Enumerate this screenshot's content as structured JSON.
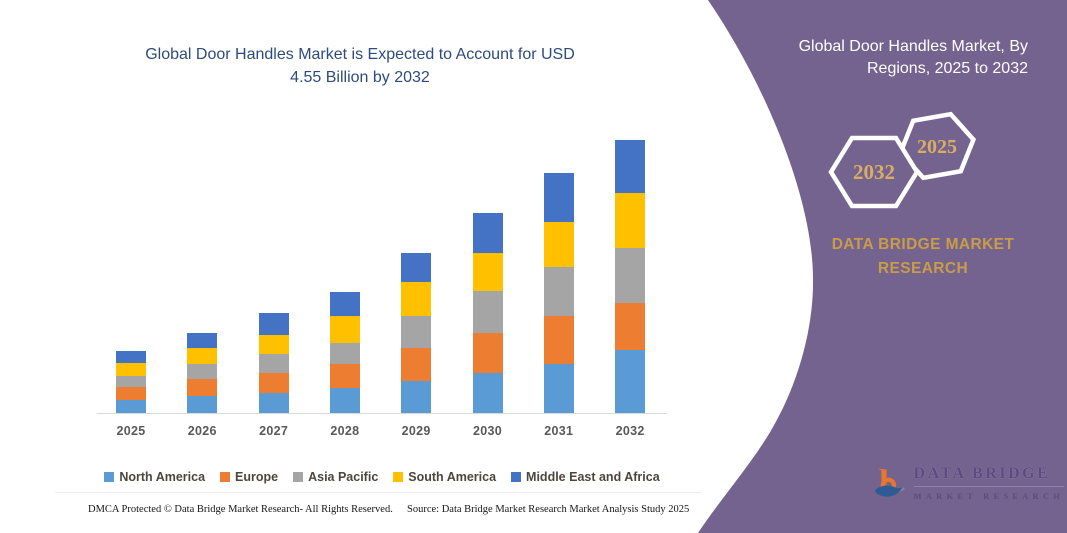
{
  "page": {
    "background": "#ffffff",
    "accent_purple": "#75638F",
    "gold": "#C89C49",
    "hex_year_gold": "#D9AE63",
    "title_navy": "#2E4B7E"
  },
  "chart": {
    "title_line1": "Global Door Handles Market is Expected to Account for USD",
    "title_line2": "4.55 Billion by 2032"
  },
  "chart_data": {
    "type": "bar",
    "stacked": true,
    "title": "Global Door Handles Market is Expected to Account for USD 4.55 Billion by 2032",
    "unit": "USD billion",
    "categories": [
      "2025",
      "2026",
      "2027",
      "2028",
      "2029",
      "2030",
      "2031",
      "2032"
    ],
    "series": [
      {
        "name": "North America",
        "color": "#5B9BD5",
        "values": [
          0.22,
          0.28,
          0.33,
          0.42,
          0.53,
          0.67,
          0.81,
          1.05
        ]
      },
      {
        "name": "Europe",
        "color": "#ED7D31",
        "values": [
          0.22,
          0.28,
          0.33,
          0.39,
          0.56,
          0.67,
          0.81,
          0.78
        ]
      },
      {
        "name": "Asia Pacific",
        "color": "#A5A5A5",
        "values": [
          0.17,
          0.25,
          0.33,
          0.36,
          0.53,
          0.69,
          0.81,
          0.92
        ]
      },
      {
        "name": "South America",
        "color": "#FFC000",
        "values": [
          0.22,
          0.28,
          0.31,
          0.44,
          0.56,
          0.64,
          0.76,
          0.92
        ]
      },
      {
        "name": "Middle East and Africa",
        "color": "#4472C4",
        "values": [
          0.2,
          0.25,
          0.37,
          0.41,
          0.49,
          0.66,
          0.81,
          0.88
        ]
      }
    ],
    "totals": [
      1.03,
      1.34,
      1.67,
      2.02,
      2.67,
      3.33,
      4.0,
      4.55
    ],
    "ylim": [
      0,
      4.9
    ],
    "y_axis_visible": false,
    "gridlines": false,
    "legend_position": "bottom"
  },
  "footer": {
    "left": "DMCA Protected © Data Bridge Market Research-  All Rights Reserved.",
    "right": "Source: Data Bridge Market Research  Market Analysis Study 2025"
  },
  "right_panel": {
    "title_line1": "Global Door Handles Market, By",
    "title_line2": "Regions, 2025 to 2032",
    "hexagon_back_year": "2025",
    "hexagon_front_year": "2032",
    "heading_line1": "DATA BRIDGE MARKET",
    "heading_line2": "RESEARCH",
    "logo_name": "DATA BRIDGE",
    "logo_sub": "MARKET RESEARCH"
  }
}
